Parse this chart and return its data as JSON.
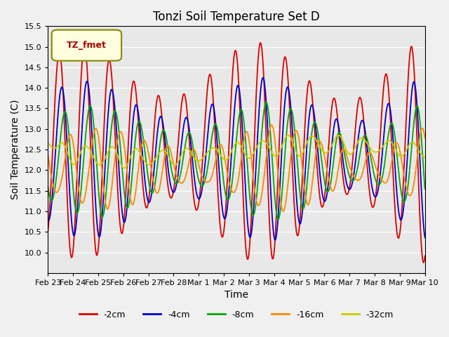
{
  "title": "Tonzi Soil Temperature Set D",
  "xlabel": "Time",
  "ylabel": "Soil Temperature (C)",
  "ylim": [
    9.5,
    15.5
  ],
  "yticks": [
    10.0,
    10.5,
    11.0,
    11.5,
    12.0,
    12.5,
    13.0,
    13.5,
    14.0,
    14.5,
    15.0,
    15.5
  ],
  "xtick_labels": [
    "Feb 23",
    "Feb 24",
    "Feb 25",
    "Feb 26",
    "Feb 27",
    "Feb 28",
    "Mar 1",
    "Mar 2",
    "Mar 3",
    "Mar 4",
    "Mar 5",
    "Mar 6",
    "Mar 7",
    "Mar 8",
    "Mar 9",
    "Mar 10"
  ],
  "legend_label": "TZ_fmet",
  "series_labels": [
    "-2cm",
    "-4cm",
    "-8cm",
    "-16cm",
    "-32cm"
  ],
  "series_colors": [
    "#dd0000",
    "#0000cc",
    "#00aa00",
    "#ff8800",
    "#cccc00"
  ],
  "background_color": "#e8e8e8",
  "fig_background": "#f0f0f0"
}
